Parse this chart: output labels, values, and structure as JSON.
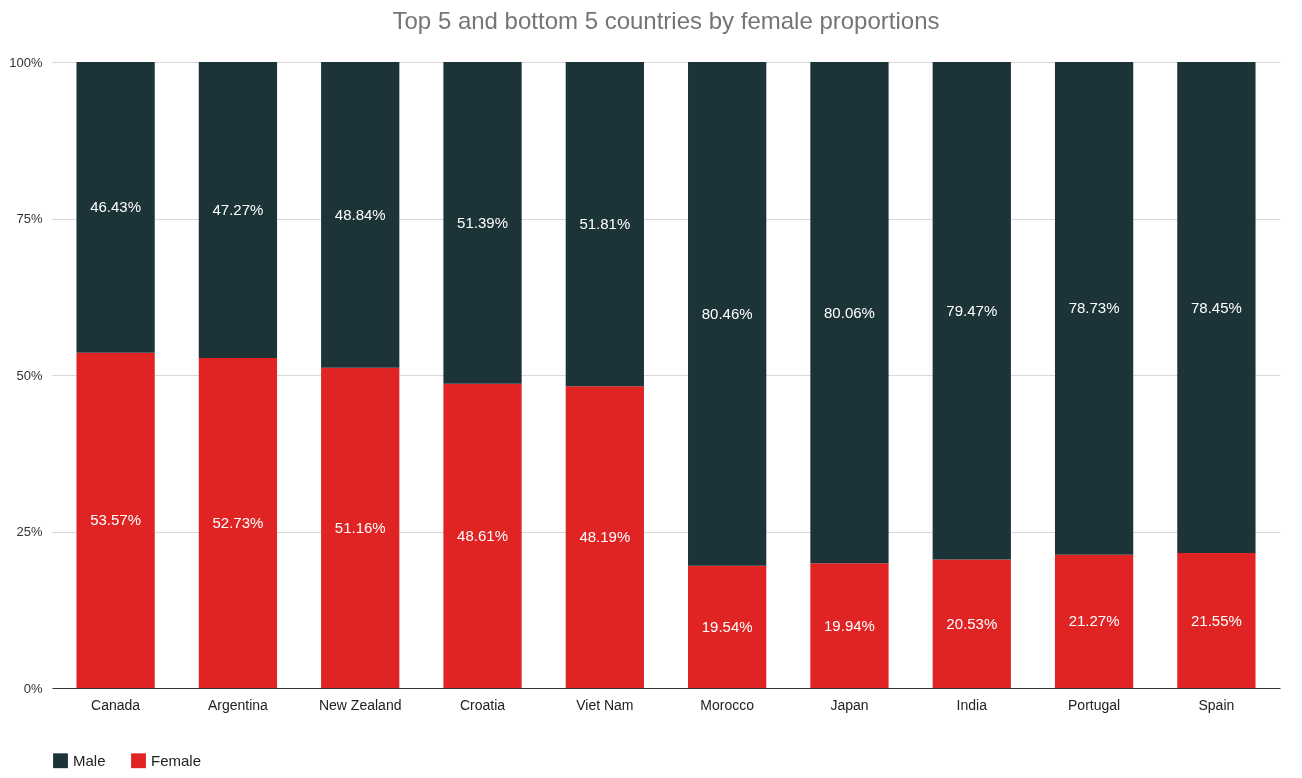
{
  "chart_data": {
    "type": "bar",
    "title": "Top 5 and bottom 5 countries by female proportions",
    "stacked": true,
    "categories": [
      "Canada",
      "Argentina",
      "New Zealand",
      "Croatia",
      "Viet Nam",
      "Morocco",
      "Japan",
      "India",
      "Portugal",
      "Spain"
    ],
    "series": [
      {
        "name": "Female",
        "color": "#e02424",
        "values": [
          53.57,
          52.73,
          51.16,
          48.61,
          48.19,
          19.54,
          19.94,
          20.53,
          21.27,
          21.55
        ],
        "value_labels": [
          "53.57%",
          "52.73%",
          "51.16%",
          "48.61%",
          "48.19%",
          "19.54%",
          "19.94%",
          "20.53%",
          "21.27%",
          "21.55%"
        ]
      },
      {
        "name": "Male",
        "color": "#1c3338",
        "values": [
          46.43,
          47.27,
          48.84,
          51.39,
          51.81,
          80.46,
          80.06,
          79.47,
          78.73,
          78.45
        ],
        "value_labels": [
          "46.43%",
          "47.27%",
          "48.84%",
          "51.39%",
          "51.81%",
          "80.46%",
          "80.06%",
          "79.47%",
          "78.73%",
          "78.45%"
        ]
      }
    ],
    "ylim": [
      0,
      100
    ],
    "yticks": [
      {
        "value": 0,
        "label": "0%"
      },
      {
        "value": 25,
        "label": "25%"
      },
      {
        "value": 50,
        "label": "50%"
      },
      {
        "value": 75,
        "label": "75%"
      },
      {
        "value": 100,
        "label": "100%"
      }
    ],
    "grid": "y",
    "legend": "bottom"
  }
}
